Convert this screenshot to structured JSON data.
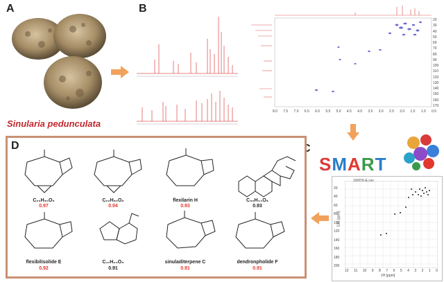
{
  "panels": {
    "A": {
      "label": "A",
      "species": "Sinularia pedunculata"
    },
    "B": {
      "label": "B"
    },
    "C": {
      "label": "C",
      "logo_letters": [
        "S",
        "M",
        "A",
        "R",
        "T"
      ],
      "plot_title": "19XDS-E.csv",
      "x_label": "1H [ppm]",
      "y_label": "13C [ppm]",
      "x_ticks": [
        "12",
        "11",
        "10",
        "9",
        "8",
        "7",
        "6",
        "5",
        "4",
        "3",
        "2",
        "1",
        "0"
      ],
      "y_ticks": [
        "20",
        "40",
        "60",
        "80",
        "100",
        "120",
        "140",
        "160",
        "180",
        "200"
      ]
    },
    "D": {
      "label": "D"
    }
  },
  "hsqc_x_ticks": [
    "8.0",
    "7.5",
    "7.0",
    "6.5",
    "6.0",
    "5.5",
    "5.0",
    "4.5",
    "4.0",
    "3.5",
    "3.0",
    "2.5",
    "2.0",
    "1.5",
    "1.0",
    "0.5"
  ],
  "hsqc_y_ticks": [
    "20",
    "30",
    "40",
    "50",
    "60",
    "70",
    "80",
    "90",
    "100",
    "110",
    "120",
    "130",
    "140",
    "150",
    "160",
    "170"
  ],
  "compounds": [
    {
      "name": "C₂₂H₃₀O₆",
      "score": "0.97",
      "score_color": "red"
    },
    {
      "name": "C₂₂H₃₀O₆",
      "score": "0.94",
      "score_color": "red"
    },
    {
      "name": "flexilarin H",
      "score": "0.93",
      "score_color": "red"
    },
    {
      "name": "C₃₀H₄₄O₈",
      "score": "0.93",
      "score_color": "black"
    },
    {
      "name": "flexibilisolide E",
      "score": "0.92",
      "score_color": "red"
    },
    {
      "name": "C₁₇H₂₄O₅",
      "score": "0.91",
      "score_color": "black"
    },
    {
      "name": "sinuladiterpene C",
      "score": "0.91",
      "score_color": "red"
    },
    {
      "name": "dendronpholide F",
      "score": "0.91",
      "score_color": "red"
    }
  ],
  "colors": {
    "arrow": "#f2a15b",
    "border_d": "#c99073",
    "red": "#e2382e",
    "spec_red": "#e05a5a",
    "peak_blue": "#6b6bd6"
  }
}
